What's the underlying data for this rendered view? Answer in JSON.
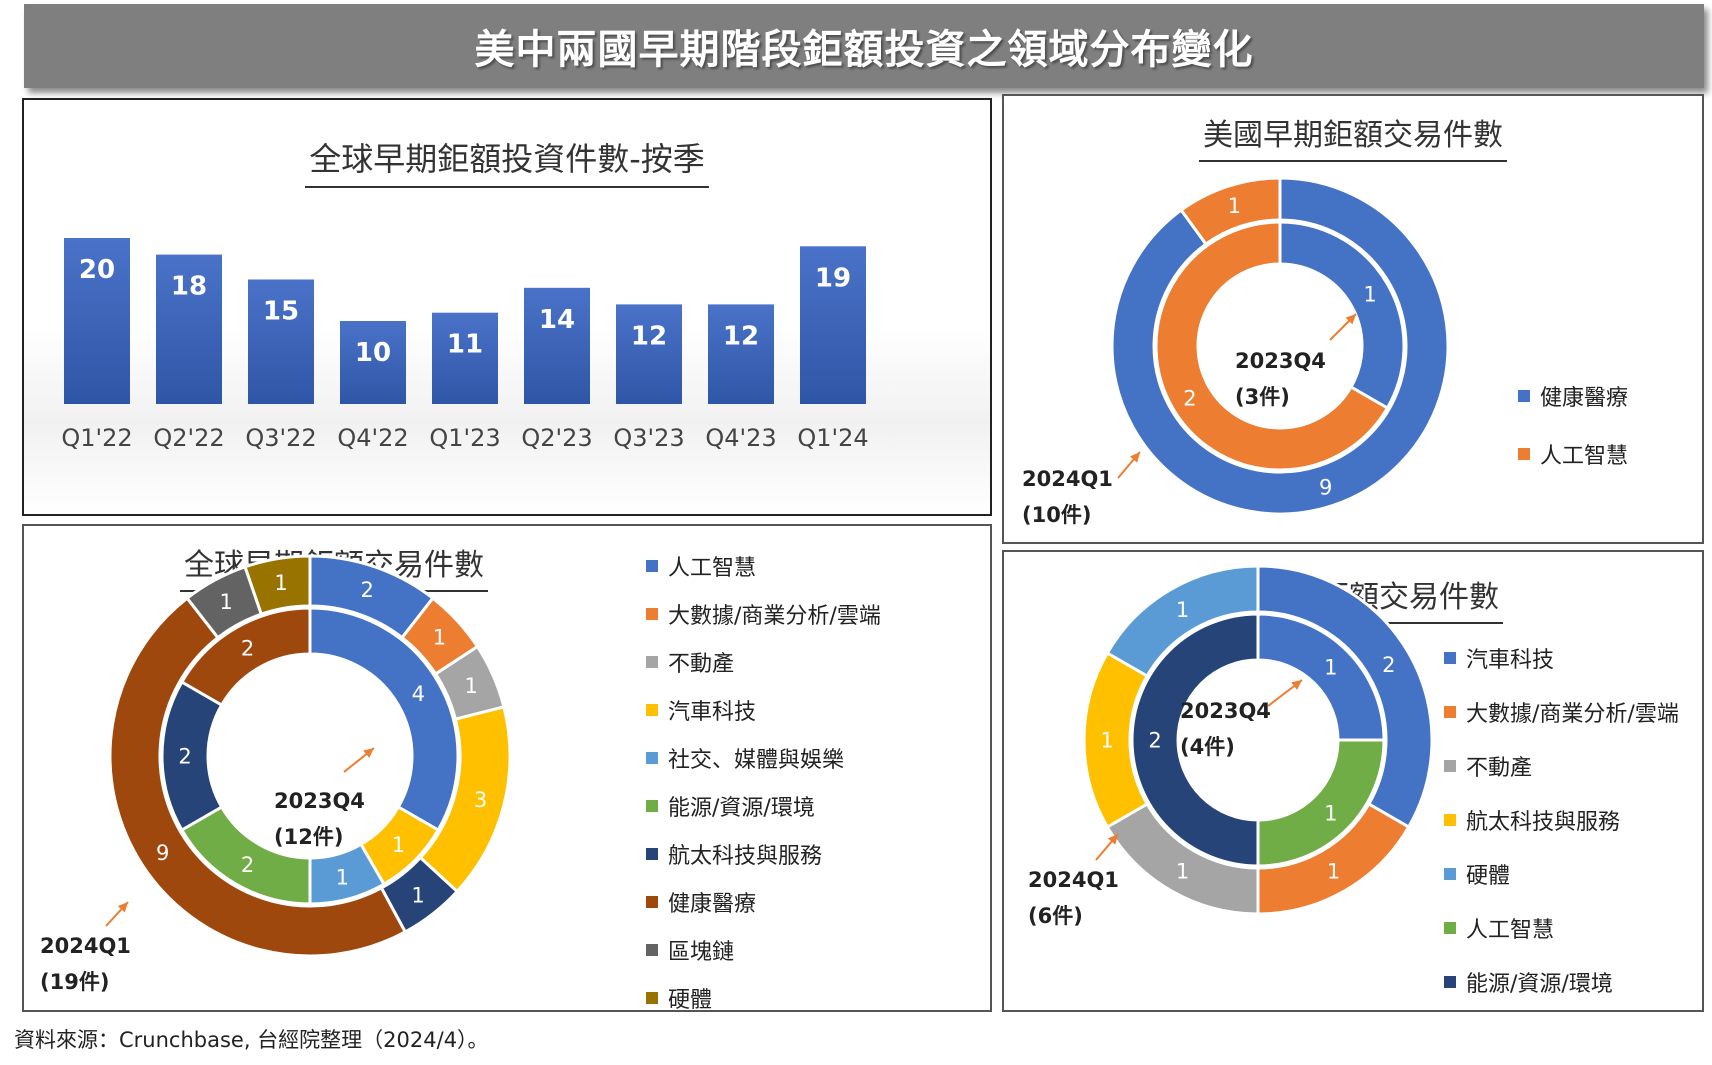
{
  "title": "美中兩國早期階段鉅額投資之領域分布變化",
  "source": "資料來源：Crunchbase, 台經院整理（2024/4）。",
  "colors": {
    "bar": "#3a62b5",
    "blue": "#4472c4",
    "orange": "#ed7d31",
    "gray": "#a5a5a5",
    "gold": "#ffc000",
    "lightblue": "#5b9bd5",
    "green": "#70ad47",
    "navy": "#264478",
    "brown": "#9e480e",
    "darkgray": "#636363",
    "olive": "#997300",
    "arrow": "#ed7d31"
  },
  "chart_data": [
    {
      "id": "global-bar",
      "type": "bar",
      "title": "全球早期鉅額投資件數-按季",
      "categories": [
        "Q1'22",
        "Q2'22",
        "Q3'22",
        "Q4'22",
        "Q1'23",
        "Q2'23",
        "Q3'23",
        "Q4'23",
        "Q1'24"
      ],
      "values": [
        20,
        18,
        15,
        10,
        11,
        14,
        12,
        12,
        19
      ],
      "ylim": [
        0,
        22
      ]
    },
    {
      "id": "us-donut",
      "type": "pie",
      "title": "美國早期鉅額交易件數",
      "legend": [
        {
          "label": "健康醫療",
          "color": "blue"
        },
        {
          "label": "人工智慧",
          "color": "orange"
        }
      ],
      "inner": {
        "period": "2023Q4",
        "total": "(3件)",
        "slices": [
          {
            "label": "健康醫療",
            "value": 1,
            "color": "blue"
          },
          {
            "label": "人工智慧",
            "value": 2,
            "color": "orange"
          }
        ]
      },
      "outer": {
        "period": "2024Q1",
        "total": "(10件)",
        "slices": [
          {
            "label": "健康醫療",
            "value": 9,
            "color": "blue"
          },
          {
            "label": "人工智慧",
            "value": 1,
            "color": "orange"
          }
        ]
      }
    },
    {
      "id": "global-donut",
      "type": "pie",
      "title": "全球早期鉅額交易件數",
      "legend": [
        {
          "label": "人工智慧",
          "color": "blue"
        },
        {
          "label": "大數據/商業分析/雲端",
          "color": "orange"
        },
        {
          "label": "不動產",
          "color": "gray"
        },
        {
          "label": "汽車科技",
          "color": "gold"
        },
        {
          "label": "社交、媒體與娛樂",
          "color": "lightblue"
        },
        {
          "label": "能源/資源/環境",
          "color": "green"
        },
        {
          "label": "航太科技與服務",
          "color": "navy"
        },
        {
          "label": "健康醫療",
          "color": "brown"
        },
        {
          "label": "區塊鏈",
          "color": "darkgray"
        },
        {
          "label": "硬體",
          "color": "olive"
        }
      ],
      "inner": {
        "period": "2023Q4",
        "total": "(12件)",
        "slices": [
          {
            "label": "人工智慧",
            "value": 4,
            "color": "blue"
          },
          {
            "label": "汽車科技",
            "value": 1,
            "color": "gold"
          },
          {
            "label": "社交、媒體與娛樂",
            "value": 1,
            "color": "lightblue"
          },
          {
            "label": "能源/資源/環境",
            "value": 2,
            "color": "green"
          },
          {
            "label": "航太科技與服務",
            "value": 2,
            "color": "navy"
          },
          {
            "label": "健康醫療",
            "value": 2,
            "color": "brown"
          }
        ]
      },
      "outer": {
        "period": "2024Q1",
        "total": "(19件)",
        "slices": [
          {
            "label": "人工智慧",
            "value": 2,
            "color": "blue"
          },
          {
            "label": "大數據/商業分析/雲端",
            "value": 1,
            "color": "orange"
          },
          {
            "label": "不動產",
            "value": 1,
            "color": "gray"
          },
          {
            "label": "汽車科技",
            "value": 3,
            "color": "gold"
          },
          {
            "label": "航太科技與服務",
            "value": 1,
            "color": "navy"
          },
          {
            "label": "健康醫療",
            "value": 9,
            "color": "brown"
          },
          {
            "label": "區塊鏈",
            "value": 1,
            "color": "darkgray"
          },
          {
            "label": "硬體",
            "value": 1,
            "color": "olive"
          }
        ]
      }
    },
    {
      "id": "cn-donut",
      "type": "pie",
      "title": "中國早期鉅額交易件數",
      "legend": [
        {
          "label": "汽車科技",
          "color": "blue"
        },
        {
          "label": "大數據/商業分析/雲端",
          "color": "orange"
        },
        {
          "label": "不動產",
          "color": "gray"
        },
        {
          "label": "航太科技與服務",
          "color": "gold"
        },
        {
          "label": "硬體",
          "color": "lightblue"
        },
        {
          "label": "人工智慧",
          "color": "green"
        },
        {
          "label": "能源/資源/環境",
          "color": "navy"
        }
      ],
      "inner": {
        "period": "2023Q4",
        "total": "(4件)",
        "slices": [
          {
            "label": "汽車科技",
            "value": 1,
            "color": "blue"
          },
          {
            "label": "人工智慧",
            "value": 1,
            "color": "green"
          },
          {
            "label": "能源/資源/環境",
            "value": 2,
            "color": "navy"
          }
        ]
      },
      "outer": {
        "period": "2024Q1",
        "total": "(6件)",
        "slices": [
          {
            "label": "汽車科技",
            "value": 2,
            "color": "blue"
          },
          {
            "label": "大數據/商業分析/雲端",
            "value": 1,
            "color": "orange"
          },
          {
            "label": "不動產",
            "value": 1,
            "color": "gray"
          },
          {
            "label": "航太科技與服務",
            "value": 1,
            "color": "gold"
          },
          {
            "label": "硬體",
            "value": 1,
            "color": "lightblue"
          }
        ]
      }
    }
  ]
}
